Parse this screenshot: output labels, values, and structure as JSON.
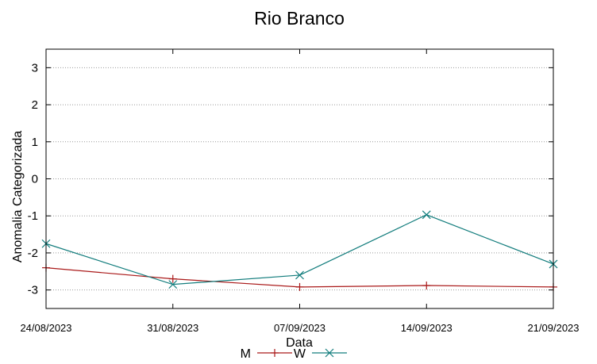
{
  "chart_data": {
    "type": "line",
    "title": "Rio Branco",
    "xlabel": "Data",
    "ylabel": "Anomalia Categorizada",
    "x": [
      "24/08/2023",
      "31/08/2023",
      "07/09/2023",
      "14/09/2023",
      "21/09/2023"
    ],
    "ylim": [
      -3.5,
      3.5
    ],
    "yticks": [
      -3,
      -2,
      -1,
      0,
      1,
      2,
      3
    ],
    "grid": "dotted-horizontal",
    "legend_position": "bottom",
    "series": [
      {
        "name": "M",
        "marker": "plus",
        "color": "#aa1a1a",
        "values": [
          -2.4,
          -2.7,
          -2.92,
          -2.88,
          -2.92
        ]
      },
      {
        "name": "W",
        "marker": "cross",
        "color": "#137d7d",
        "values": [
          -1.75,
          -2.85,
          -2.6,
          -0.97,
          -2.3
        ]
      }
    ]
  }
}
